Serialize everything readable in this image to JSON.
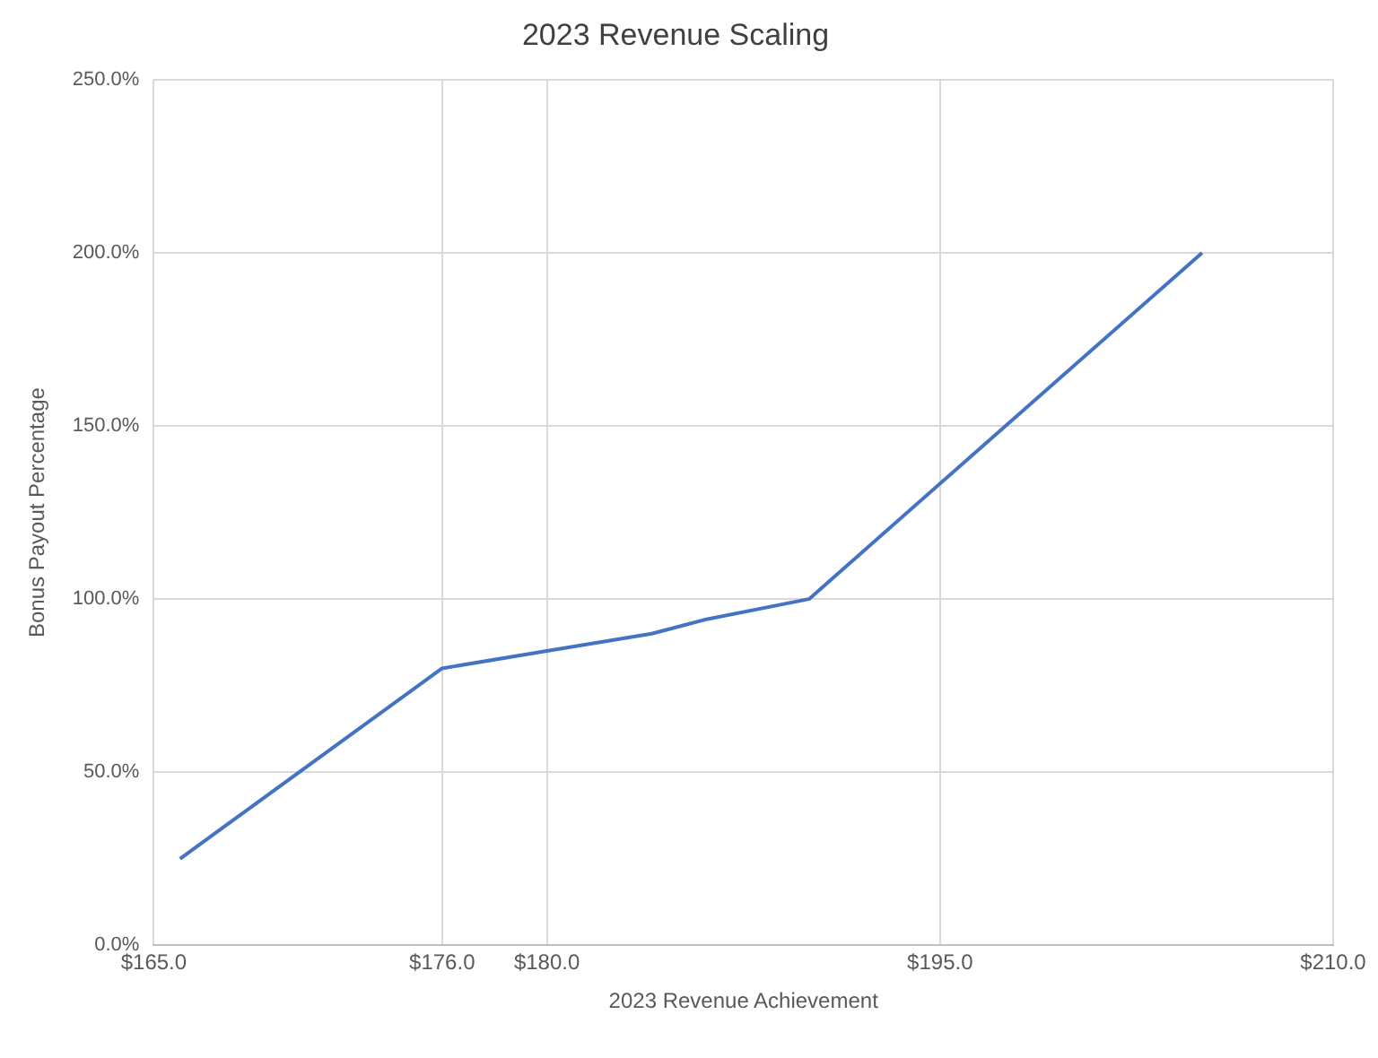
{
  "chart_data": {
    "type": "line",
    "title": "2023 Revenue Scaling",
    "xlabel": "2023 Revenue Achievement",
    "ylabel": "Bonus Payout Percentage",
    "x": [
      166,
      176,
      180,
      184,
      186,
      190,
      205
    ],
    "series": [
      {
        "color": "#4472c4",
        "values": [
          25,
          80,
          85,
          90,
          94,
          100,
          200
        ]
      }
    ],
    "xlim": [
      165,
      210
    ],
    "xticks": [
      {
        "value": 165,
        "label": "$165.0"
      },
      {
        "value": 176,
        "label": "$176.0"
      },
      {
        "value": 180,
        "label": "$180.0"
      },
      {
        "value": 195,
        "label": "$195.0"
      },
      {
        "value": 210,
        "label": "$210.0"
      }
    ],
    "ylim": [
      0,
      250
    ],
    "yticks": [
      {
        "value": 0,
        "label": "0.0%"
      },
      {
        "value": 50,
        "label": "50.0%"
      },
      {
        "value": 100,
        "label": "100.0%"
      },
      {
        "value": 150,
        "label": "150.0%"
      },
      {
        "value": 200,
        "label": "200.0%"
      },
      {
        "value": 250,
        "label": "250.0%"
      }
    ],
    "grid": true,
    "legend": false,
    "marker": "none",
    "line_style": "solid"
  }
}
